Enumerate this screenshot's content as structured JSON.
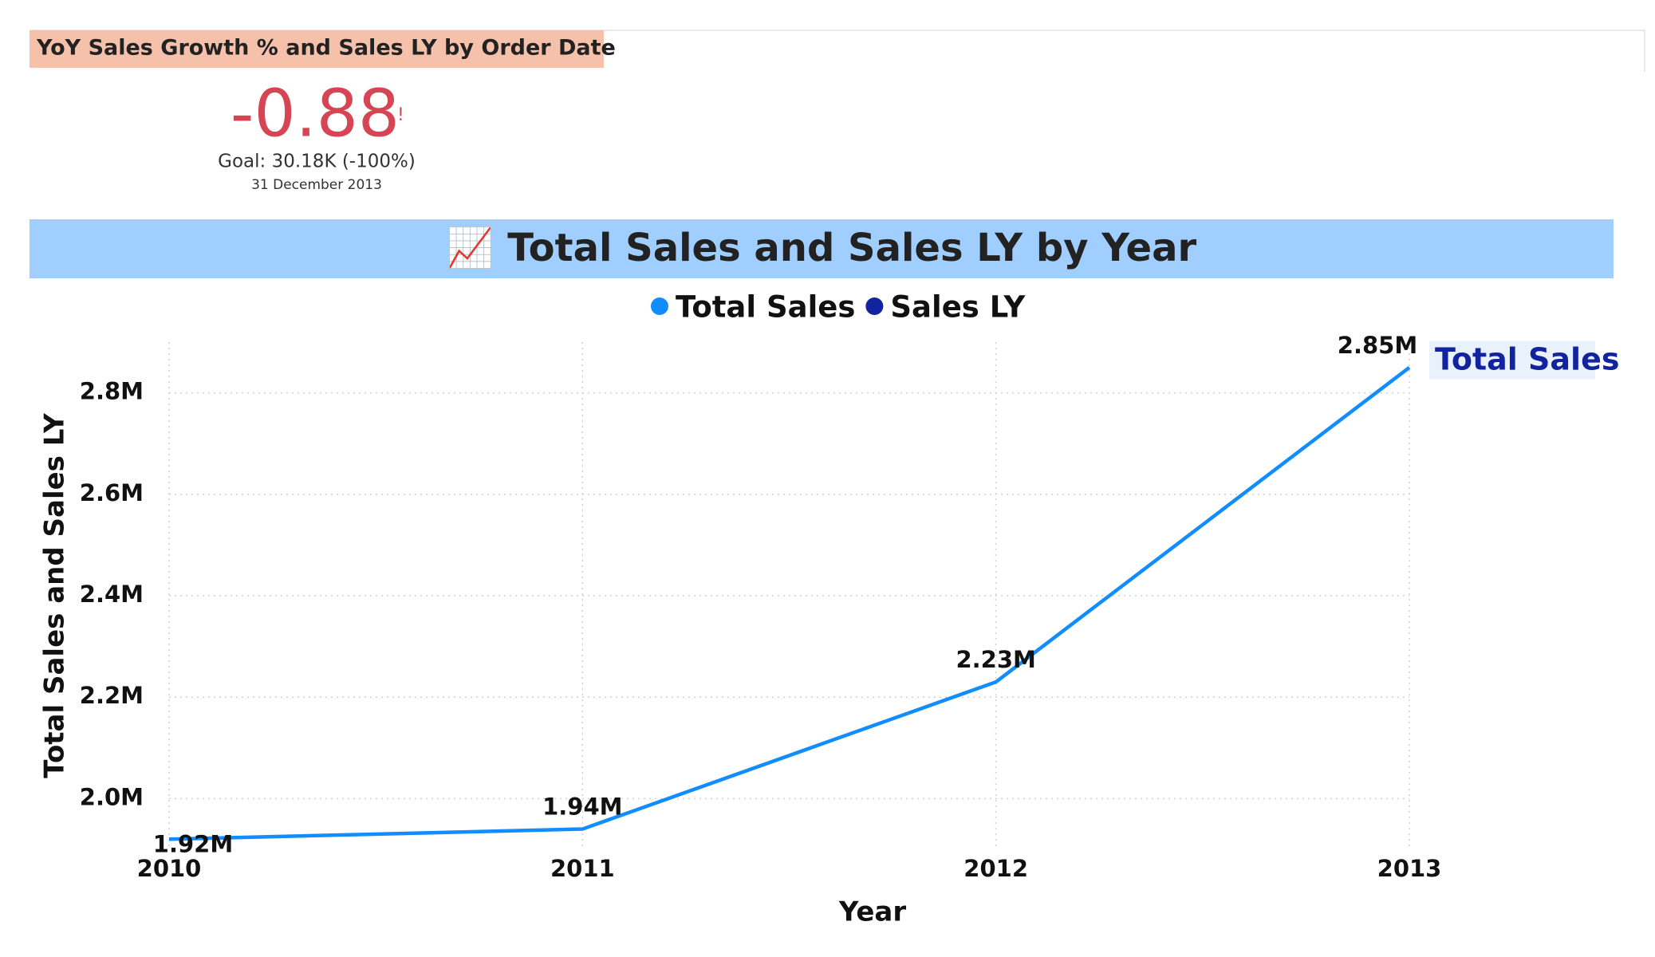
{
  "kpi": {
    "title": "YoY Sales Growth % and Sales LY by Order Date",
    "value": "-0.88",
    "alert": "!",
    "goal": "Goal: 30.18K (-100%)",
    "date": "31 December 2013"
  },
  "chart_data": {
    "type": "line",
    "title": "📈 Total Sales and Sales LY by Year",
    "categories": [
      "2010",
      "2011",
      "2012",
      "2013"
    ],
    "series": [
      {
        "name": "Total Sales",
        "color": "#118dff",
        "values": [
          1920000,
          1940000,
          2230000,
          2850000
        ],
        "value_labels": [
          "1.92M",
          "1.94M",
          "2.23M",
          "2.85M"
        ]
      },
      {
        "name": "Sales LY",
        "color": "#12239e",
        "values": [
          null,
          null,
          null,
          null
        ]
      }
    ],
    "ylim": [
      1900000,
      2900000
    ],
    "yticks": [
      {
        "value": 2000000,
        "label": "2.0M"
      },
      {
        "value": 2200000,
        "label": "2.2M"
      },
      {
        "value": 2400000,
        "label": "2.4M"
      },
      {
        "value": 2600000,
        "label": "2.6M"
      },
      {
        "value": 2800000,
        "label": "2.8M"
      }
    ],
    "xlabel": "Year",
    "ylabel": "Total Sales and Sales LY",
    "grid": true
  }
}
